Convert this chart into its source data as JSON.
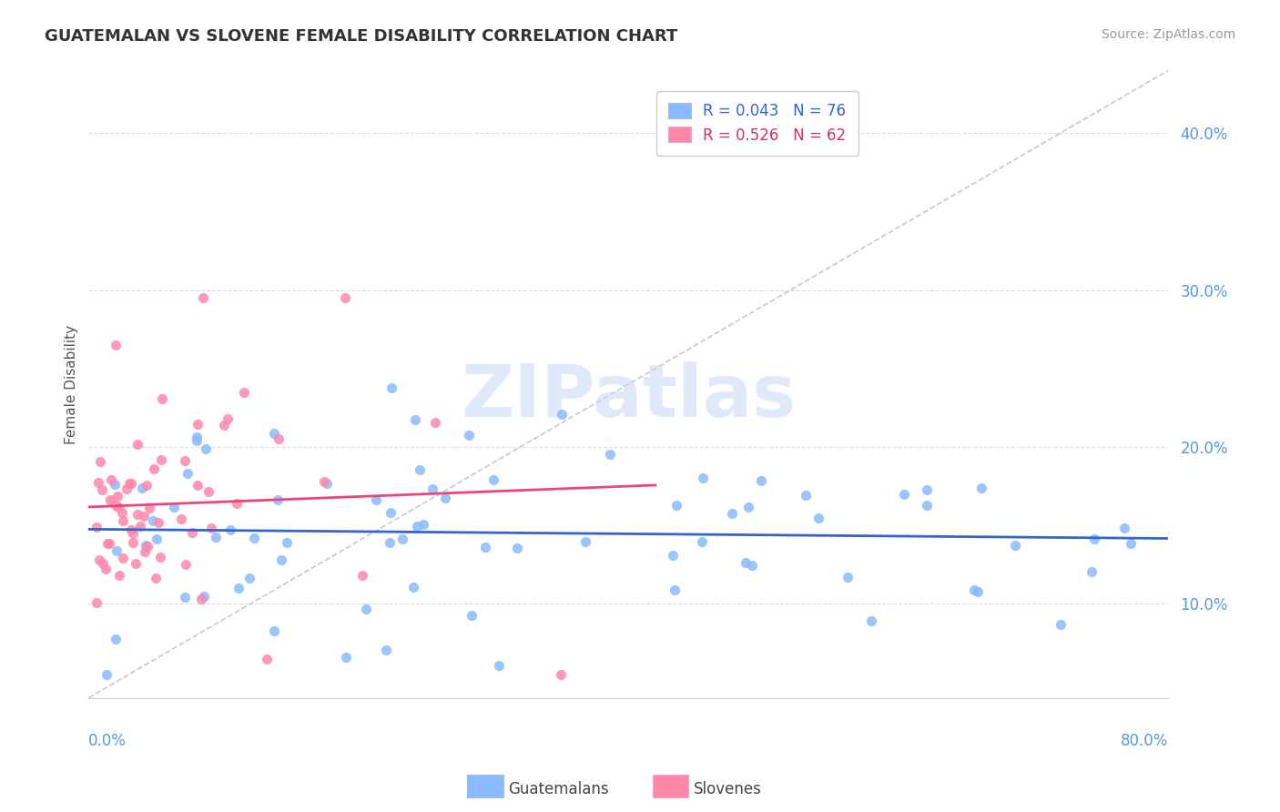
{
  "title": "GUATEMALAN VS SLOVENE FEMALE DISABILITY CORRELATION CHART",
  "source": "Source: ZipAtlas.com",
  "ylabel": "Female Disability",
  "yticklabels": [
    "10.0%",
    "20.0%",
    "30.0%",
    "40.0%"
  ],
  "yticks": [
    0.1,
    0.2,
    0.3,
    0.4
  ],
  "xlim": [
    0.0,
    0.8
  ],
  "ylim": [
    0.04,
    0.44
  ],
  "watermark": "ZIPatlas",
  "legend_labels": [
    "R = 0.043   N = 76",
    "R = 0.526   N = 62"
  ],
  "guatemalan_color": "#88bbff",
  "slovene_color": "#ff88aa",
  "guatemalan_trend_color": "#3366cc",
  "slovene_trend_color": "#ee4477",
  "background_color": "#ffffff",
  "grid_color": "#cccccc",
  "title_color": "#333333",
  "axis_label_color": "#555555",
  "tick_color": "#5599dd",
  "legend_text_color_1": "#3366cc",
  "legend_text_color_2": "#cc3366",
  "bottom_legend_color": "#444444"
}
